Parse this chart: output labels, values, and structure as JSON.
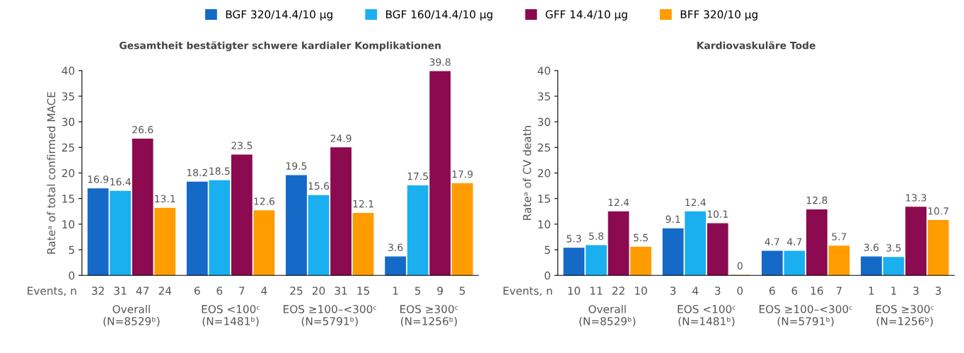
{
  "chart_data": [
    {
      "type": "bar",
      "title": "Gesamtheit bestätigter schwere kardialer Komplikationen",
      "ylabel": "Rateᵃ of total confirmed MACE",
      "categories": [
        "Overall\n(N=8529ᵇ)",
        "EOS <100ᶜ\n(N=1481ᵇ)",
        "EOS ≥100–<300ᶜ\n(N=5791ᵇ)",
        "EOS ≥300ᶜ\n(N=1256ᵇ)"
      ],
      "series": [
        {
          "name": "BGF 320/14.4/10 µg",
          "color": "#1569c7",
          "values": [
            16.9,
            18.2,
            19.5,
            3.6
          ]
        },
        {
          "name": "BGF 160/14.4/10 µg",
          "color": "#1ab0f0",
          "values": [
            16.4,
            18.5,
            15.6,
            17.5
          ]
        },
        {
          "name": "GFF 14.4/10 µg",
          "color": "#8c0a4f",
          "values": [
            26.6,
            23.5,
            24.9,
            39.8
          ]
        },
        {
          "name": "BFF 320/10 µg",
          "color": "#ff9c00",
          "values": [
            13.1,
            12.6,
            12.1,
            17.9
          ]
        }
      ],
      "ylim": [
        0,
        40
      ],
      "yticks": [
        0,
        5,
        10,
        15,
        20,
        25,
        30,
        35,
        40
      ],
      "data_labels": true,
      "grid": false,
      "legend": "top",
      "annotations": [
        "Events, n",
        "32",
        "31",
        "47",
        "24",
        "6",
        "6",
        "7",
        "4",
        "25",
        "20",
        "31",
        "15",
        "1",
        "5",
        "9",
        "5"
      ]
    },
    {
      "type": "bar",
      "title": "Kardiovaskuläre Tode",
      "ylabel": "Rateᵃ of CV death",
      "categories": [
        "Overall\n(N=8529ᵇ)",
        "EOS <100ᶜ\n(N=1481ᵇ)",
        "EOS ≥100–<300ᶜ\n(N=5791ᵇ)",
        "EOS ≥300ᶜ\n(N=1256ᵇ)"
      ],
      "series": [
        {
          "color": "#1569c7",
          "values": [
            5.3,
            9.1,
            4.7,
            3.6
          ]
        },
        {
          "color": "#1ab0f0",
          "values": [
            5.8,
            12.4,
            4.7,
            3.5
          ]
        },
        {
          "color": "#8c0a4f",
          "values": [
            12.4,
            10.1,
            12.8,
            13.3
          ]
        },
        {
          "color": "#ff9c00",
          "values": [
            5.5,
            0,
            5.7,
            10.7
          ]
        }
      ],
      "ylim": [
        0,
        40
      ],
      "yticks": [
        0,
        5,
        10,
        15,
        20,
        25,
        30,
        35,
        40
      ],
      "data_labels": true,
      "grid": false,
      "annotations": [
        "Events, n",
        "10",
        "11",
        "22",
        "10",
        "3",
        "4",
        "3",
        "0",
        "6",
        "6",
        "16",
        "7",
        "1",
        "1",
        "3",
        "3"
      ]
    }
  ]
}
